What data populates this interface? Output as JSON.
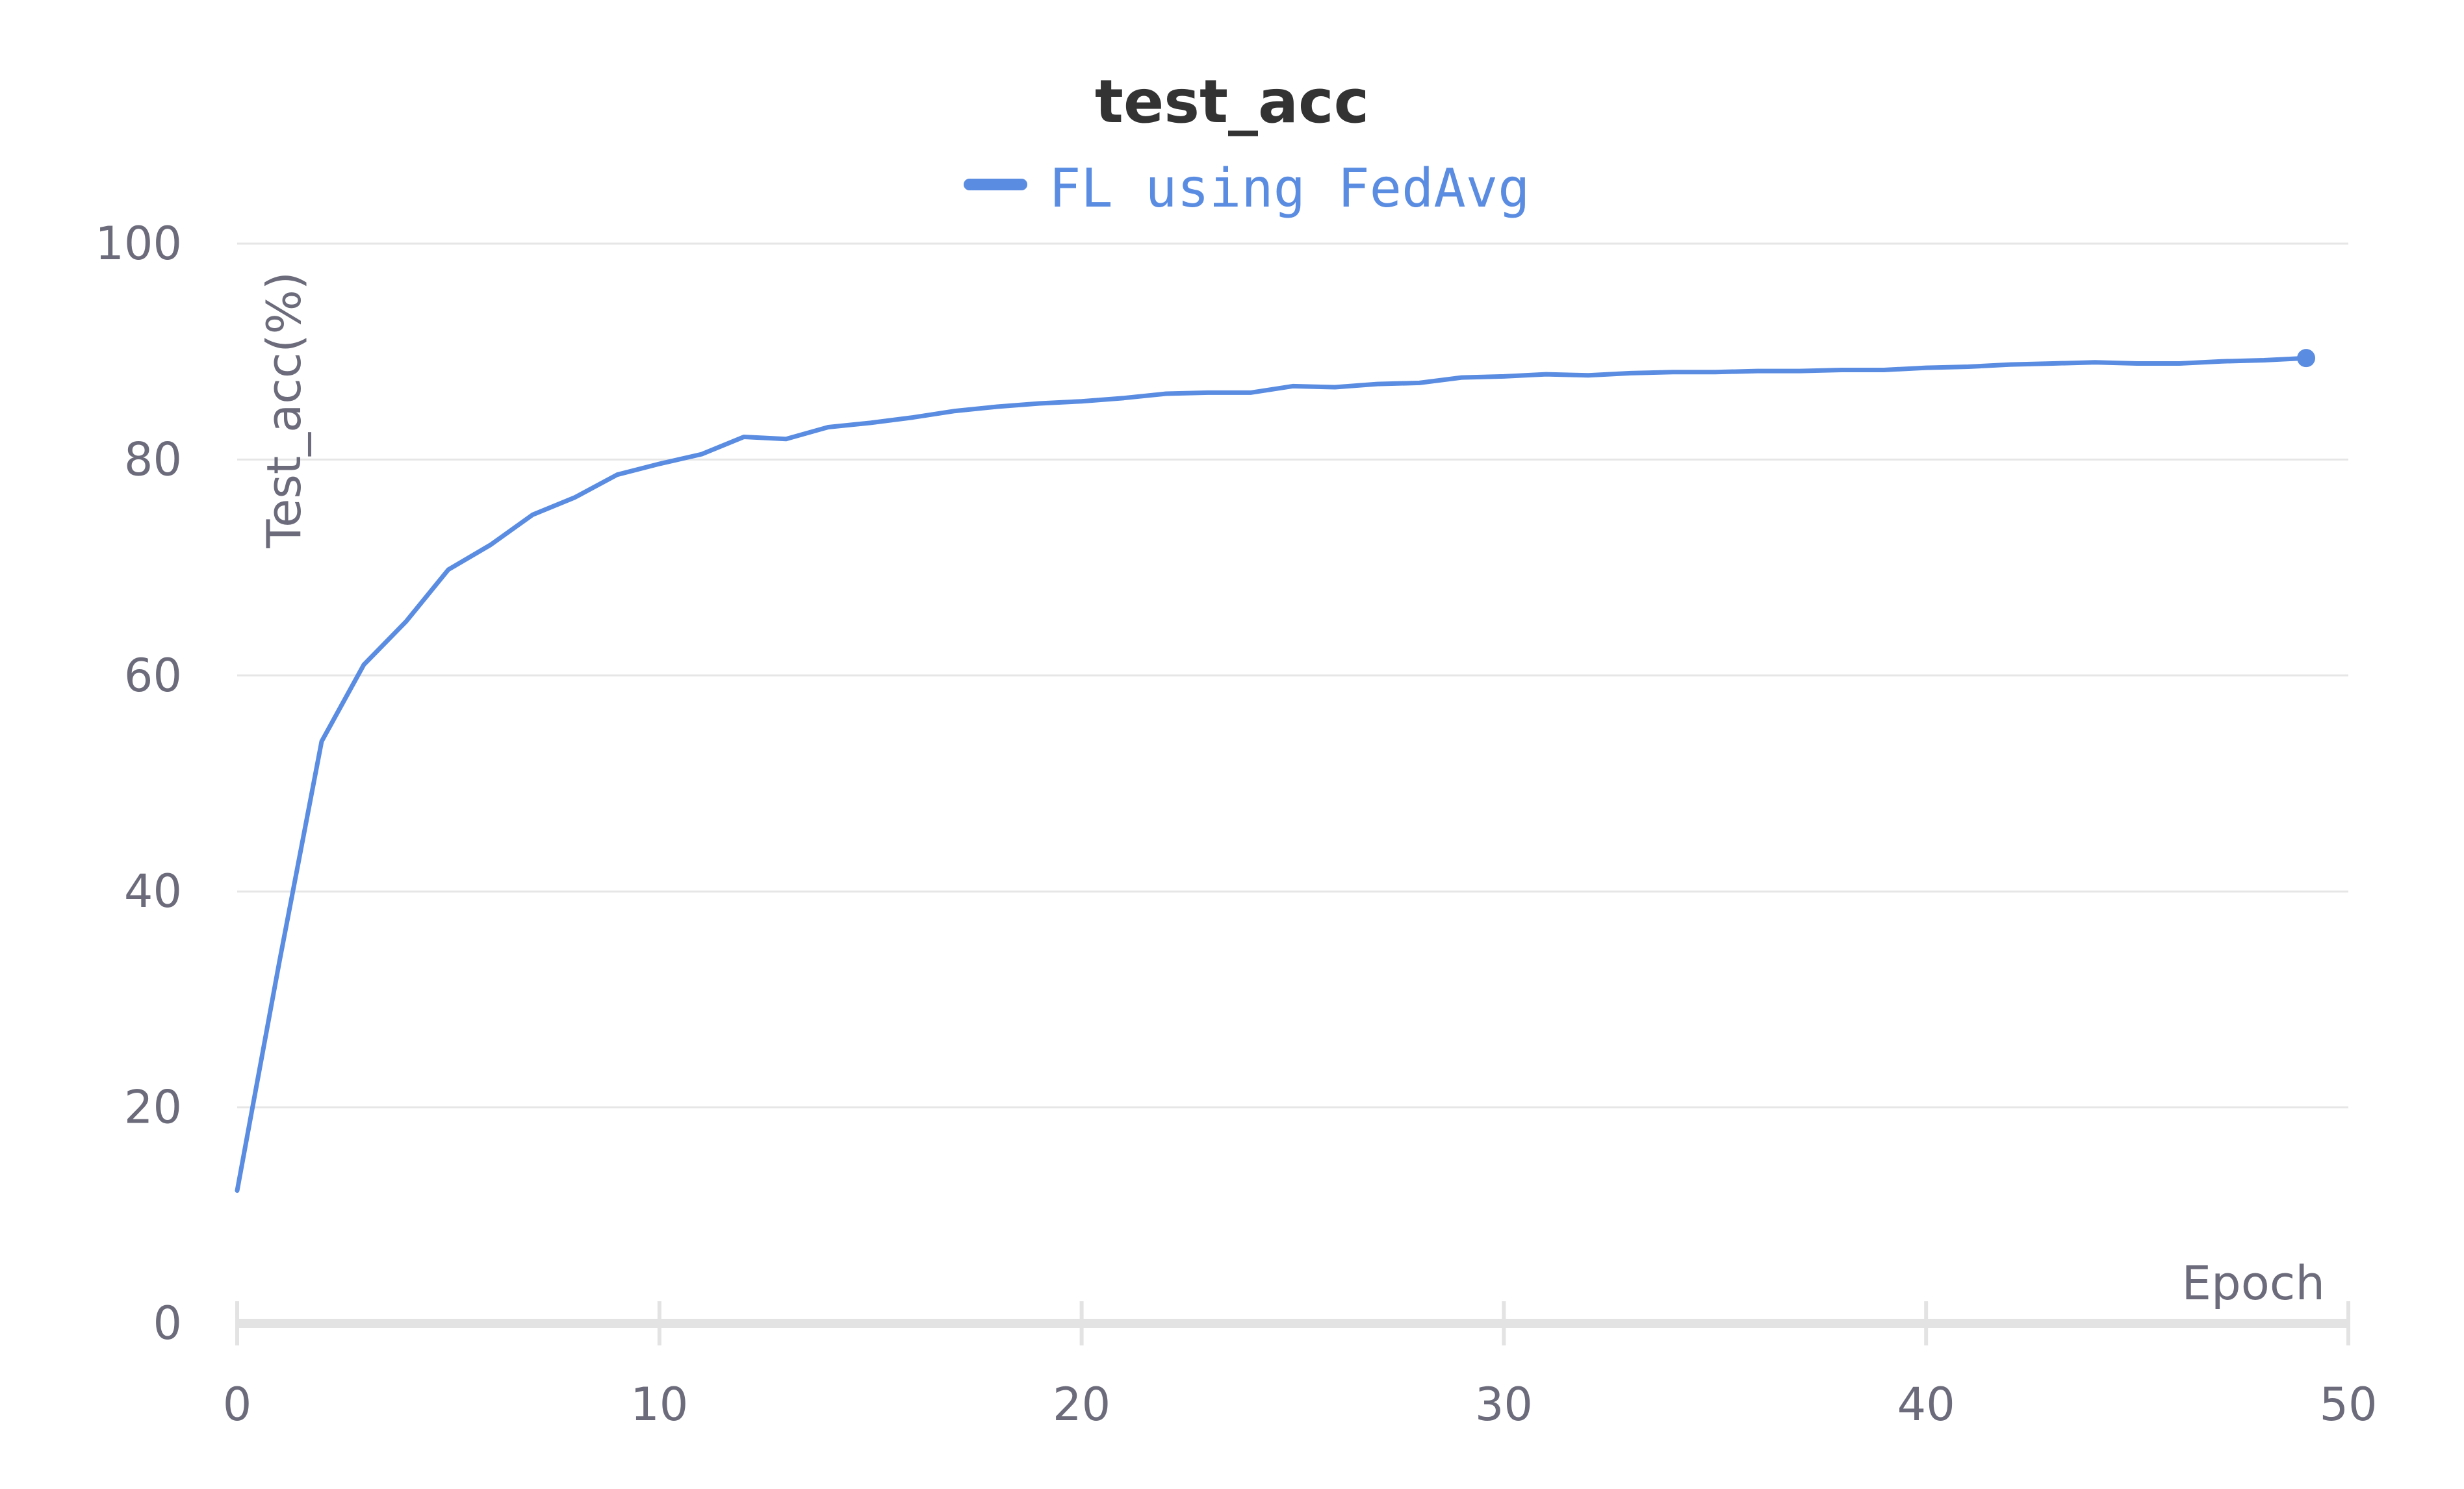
{
  "chart_data": {
    "type": "line",
    "title": "test_acc",
    "xlabel": "Epoch",
    "ylabel": "Test_acc(%)",
    "xlim": [
      0,
      50
    ],
    "ylim": [
      0,
      100
    ],
    "xticks": [
      0,
      10,
      20,
      30,
      40,
      50
    ],
    "yticks": [
      0,
      20,
      40,
      60,
      80,
      100
    ],
    "grid": "horizontal",
    "legend": "top-center",
    "series": [
      {
        "name": "FL using FedAvg",
        "color": "#5a8ce1",
        "x": [
          0,
          1,
          2,
          3,
          4,
          5,
          6,
          7,
          8,
          9,
          10,
          11,
          12,
          13,
          14,
          15,
          16,
          17,
          18,
          19,
          20,
          21,
          22,
          23,
          24,
          25,
          26,
          27,
          28,
          29,
          30,
          31,
          32,
          33,
          34,
          35,
          36,
          37,
          38,
          39,
          40,
          41,
          42,
          43,
          44,
          45,
          46,
          47,
          48,
          49
        ],
        "values": [
          12.3,
          33.5,
          53.9,
          61.0,
          65.0,
          69.8,
          72.1,
          74.9,
          76.5,
          78.6,
          79.6,
          80.5,
          82.1,
          81.9,
          83.0,
          83.4,
          83.9,
          84.5,
          84.9,
          85.2,
          85.4,
          85.7,
          86.1,
          86.2,
          86.2,
          86.8,
          86.7,
          87.0,
          87.1,
          87.6,
          87.7,
          87.9,
          87.8,
          88.0,
          88.1,
          88.1,
          88.2,
          88.2,
          88.3,
          88.3,
          88.5,
          88.6,
          88.8,
          88.9,
          89.0,
          88.9,
          88.9,
          89.1,
          89.2,
          89.4
        ]
      }
    ]
  }
}
